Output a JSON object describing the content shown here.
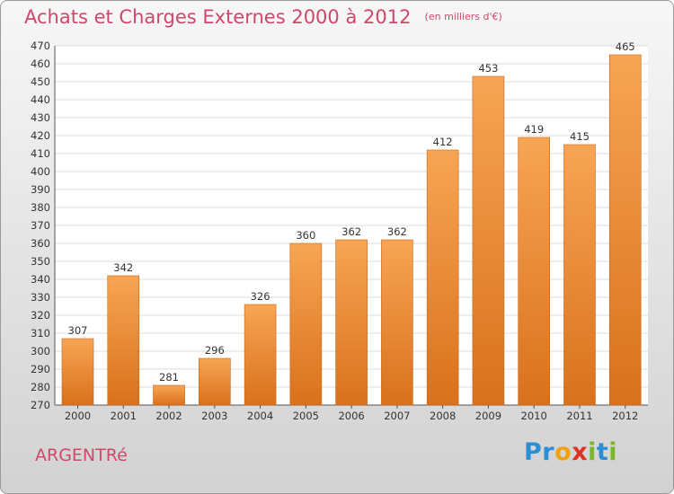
{
  "chart_data": {
    "type": "bar",
    "title": "Achats et Charges Externes 2000 à 2012",
    "unit": "(en milliers d'€)",
    "categories": [
      "2000",
      "2001",
      "2002",
      "2003",
      "2004",
      "2005",
      "2006",
      "2007",
      "2008",
      "2009",
      "2010",
      "2011",
      "2012"
    ],
    "values": [
      307,
      342,
      281,
      296,
      326,
      360,
      362,
      362,
      412,
      453,
      419,
      415,
      465
    ],
    "ylim": [
      270,
      470
    ],
    "ytick_step": 10,
    "grid": true,
    "data_labels": true,
    "colors": {
      "bar_top": "#f7a554",
      "bar_bottom": "#d9711c",
      "bar_edge": "#c86414"
    }
  },
  "commune": "ARGENTRé",
  "logo": {
    "letters": [
      {
        "ch": "P",
        "color": "#2c8fd6"
      },
      {
        "ch": "r",
        "color": "#2c8fd6"
      },
      {
        "ch": "o",
        "color": "#f2a10f"
      },
      {
        "ch": "x",
        "color": "#e0321f"
      },
      {
        "ch": "i",
        "color": "#7ab52b"
      },
      {
        "ch": "t",
        "color": "#2c8fd6"
      },
      {
        "ch": "i",
        "color": "#7ab52b"
      }
    ]
  }
}
